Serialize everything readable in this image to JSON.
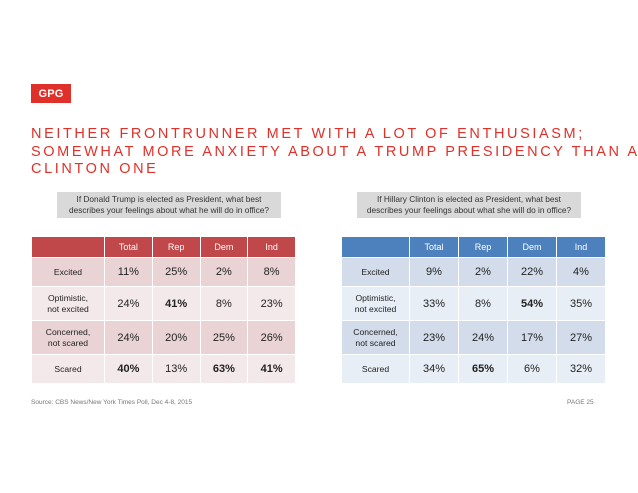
{
  "logo": "GPG",
  "title_lines": [
    "NEITHER FRONTRUNNER MET WITH A LOT OF ENTHUSIASM;",
    "SOMEWHAT MORE ANXIETY ABOUT A TRUMP PRESIDENCY THAN A",
    "CLINTON ONE"
  ],
  "left": {
    "question_lines": [
      "If Donald Trump is elected as President, what best",
      "describes your feelings about what he will do in office?"
    ],
    "headers": [
      "",
      "Total",
      "Rep",
      "Dem",
      "Ind"
    ],
    "rows": [
      {
        "label": [
          "Excited"
        ],
        "values": [
          "11%",
          "25%",
          "2%",
          "8%"
        ]
      },
      {
        "label": [
          "Optimistic,",
          "not excited"
        ],
        "values": [
          "24%",
          "41%",
          "8%",
          "23%"
        ]
      },
      {
        "label": [
          "Concerned,",
          "not scared"
        ],
        "values": [
          "24%",
          "20%",
          "25%",
          "26%"
        ]
      },
      {
        "label": [
          "Scared"
        ],
        "values": [
          "40%",
          "13%",
          "63%",
          "41%"
        ]
      }
    ]
  },
  "right": {
    "question_lines": [
      "If Hillary Clinton is elected as President, what best",
      "describes your feelings about what she will do in office?"
    ],
    "headers": [
      "",
      "Total",
      "Rep",
      "Dem",
      "Ind"
    ],
    "rows": [
      {
        "label": [
          "Excited"
        ],
        "values": [
          "9%",
          "2%",
          "22%",
          "4%"
        ]
      },
      {
        "label": [
          "Optimistic,",
          "not excited"
        ],
        "values": [
          "33%",
          "8%",
          "54%",
          "35%"
        ]
      },
      {
        "label": [
          "Concerned,",
          "not scared"
        ],
        "values": [
          "23%",
          "24%",
          "17%",
          "27%"
        ]
      },
      {
        "label": [
          "Scared"
        ],
        "values": [
          "34%",
          "65%",
          "6%",
          "32%"
        ]
      }
    ]
  },
  "source": "Source: CBS News/New York Times Poll, Dec 4-8, 2015",
  "page": "PAGE 25",
  "colors": {
    "accent": "#e0302a",
    "left_header": "#c0474a",
    "right_header": "#4d81bd"
  }
}
